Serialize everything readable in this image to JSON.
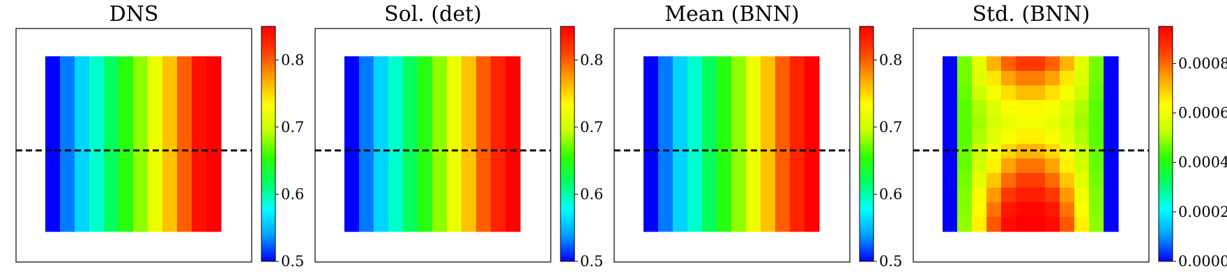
{
  "chart_data": [
    {
      "type": "heatmap",
      "title": "DNS",
      "colorbar": {
        "vmin": 0.5,
        "vmax": 0.85,
        "ticks": [
          0.5,
          0.6,
          0.7,
          0.8
        ],
        "tick_labels": [
          "0.5",
          "0.6",
          "0.7",
          "0.8"
        ]
      },
      "grid": [
        [
          0.5,
          0.53,
          0.56,
          0.59,
          0.62,
          0.65,
          0.68,
          0.72,
          0.76,
          0.8,
          0.84,
          0.85
        ],
        [
          0.5,
          0.53,
          0.56,
          0.59,
          0.62,
          0.65,
          0.68,
          0.72,
          0.76,
          0.8,
          0.84,
          0.85
        ],
        [
          0.5,
          0.53,
          0.56,
          0.59,
          0.62,
          0.65,
          0.68,
          0.72,
          0.76,
          0.8,
          0.84,
          0.85
        ],
        [
          0.5,
          0.53,
          0.56,
          0.59,
          0.62,
          0.65,
          0.68,
          0.72,
          0.76,
          0.8,
          0.84,
          0.85
        ],
        [
          0.5,
          0.53,
          0.56,
          0.59,
          0.62,
          0.65,
          0.68,
          0.72,
          0.76,
          0.8,
          0.84,
          0.85
        ],
        [
          0.5,
          0.53,
          0.56,
          0.59,
          0.62,
          0.65,
          0.68,
          0.72,
          0.76,
          0.8,
          0.84,
          0.85
        ],
        [
          0.5,
          0.53,
          0.56,
          0.59,
          0.62,
          0.65,
          0.68,
          0.72,
          0.76,
          0.8,
          0.84,
          0.85
        ],
        [
          0.5,
          0.53,
          0.56,
          0.59,
          0.62,
          0.65,
          0.68,
          0.72,
          0.76,
          0.8,
          0.84,
          0.85
        ],
        [
          0.5,
          0.53,
          0.56,
          0.59,
          0.62,
          0.65,
          0.68,
          0.72,
          0.76,
          0.8,
          0.84,
          0.85
        ],
        [
          0.5,
          0.53,
          0.56,
          0.59,
          0.62,
          0.65,
          0.68,
          0.72,
          0.76,
          0.8,
          0.84,
          0.85
        ],
        [
          0.5,
          0.53,
          0.56,
          0.59,
          0.62,
          0.65,
          0.68,
          0.72,
          0.76,
          0.8,
          0.84,
          0.85
        ],
        [
          0.5,
          0.53,
          0.56,
          0.59,
          0.62,
          0.65,
          0.68,
          0.72,
          0.76,
          0.8,
          0.84,
          0.85
        ]
      ]
    },
    {
      "type": "heatmap",
      "title": "Sol. (det)",
      "colorbar": {
        "vmin": 0.5,
        "vmax": 0.85,
        "ticks": [
          0.5,
          0.6,
          0.7,
          0.8
        ],
        "tick_labels": [
          "0.5",
          "0.6",
          "0.7",
          "0.8"
        ]
      },
      "grid": [
        [
          0.5,
          0.53,
          0.56,
          0.59,
          0.62,
          0.65,
          0.68,
          0.72,
          0.76,
          0.8,
          0.83,
          0.85
        ],
        [
          0.5,
          0.53,
          0.56,
          0.59,
          0.62,
          0.65,
          0.68,
          0.72,
          0.76,
          0.8,
          0.83,
          0.85
        ],
        [
          0.5,
          0.53,
          0.56,
          0.59,
          0.62,
          0.65,
          0.68,
          0.72,
          0.76,
          0.8,
          0.83,
          0.85
        ],
        [
          0.5,
          0.53,
          0.56,
          0.59,
          0.62,
          0.65,
          0.68,
          0.72,
          0.76,
          0.8,
          0.83,
          0.85
        ],
        [
          0.5,
          0.53,
          0.56,
          0.59,
          0.62,
          0.65,
          0.68,
          0.72,
          0.76,
          0.8,
          0.83,
          0.85
        ],
        [
          0.5,
          0.53,
          0.56,
          0.59,
          0.62,
          0.65,
          0.68,
          0.72,
          0.76,
          0.8,
          0.83,
          0.85
        ],
        [
          0.5,
          0.53,
          0.56,
          0.59,
          0.62,
          0.65,
          0.68,
          0.72,
          0.76,
          0.8,
          0.83,
          0.85
        ],
        [
          0.5,
          0.53,
          0.56,
          0.59,
          0.62,
          0.65,
          0.68,
          0.72,
          0.76,
          0.8,
          0.83,
          0.85
        ],
        [
          0.5,
          0.53,
          0.56,
          0.59,
          0.62,
          0.65,
          0.68,
          0.72,
          0.76,
          0.8,
          0.83,
          0.85
        ],
        [
          0.5,
          0.53,
          0.56,
          0.59,
          0.62,
          0.65,
          0.68,
          0.72,
          0.76,
          0.8,
          0.83,
          0.85
        ],
        [
          0.5,
          0.53,
          0.56,
          0.59,
          0.62,
          0.65,
          0.68,
          0.72,
          0.76,
          0.8,
          0.83,
          0.85
        ],
        [
          0.5,
          0.53,
          0.56,
          0.59,
          0.62,
          0.65,
          0.68,
          0.72,
          0.76,
          0.8,
          0.83,
          0.85
        ]
      ]
    },
    {
      "type": "heatmap",
      "title": "Mean (BNN)",
      "colorbar": {
        "vmin": 0.5,
        "vmax": 0.85,
        "ticks": [
          0.5,
          0.6,
          0.7,
          0.8
        ],
        "tick_labels": [
          "0.5",
          "0.6",
          "0.7",
          "0.8"
        ]
      },
      "grid": [
        [
          0.5,
          0.53,
          0.56,
          0.59,
          0.62,
          0.65,
          0.68,
          0.72,
          0.76,
          0.8,
          0.83,
          0.85
        ],
        [
          0.5,
          0.53,
          0.56,
          0.59,
          0.62,
          0.65,
          0.68,
          0.72,
          0.76,
          0.8,
          0.83,
          0.85
        ],
        [
          0.5,
          0.53,
          0.56,
          0.59,
          0.62,
          0.65,
          0.68,
          0.72,
          0.76,
          0.8,
          0.83,
          0.85
        ],
        [
          0.5,
          0.53,
          0.56,
          0.59,
          0.62,
          0.65,
          0.68,
          0.72,
          0.76,
          0.8,
          0.83,
          0.85
        ],
        [
          0.5,
          0.53,
          0.56,
          0.59,
          0.62,
          0.65,
          0.68,
          0.72,
          0.76,
          0.8,
          0.83,
          0.85
        ],
        [
          0.5,
          0.53,
          0.56,
          0.59,
          0.62,
          0.65,
          0.68,
          0.72,
          0.76,
          0.8,
          0.83,
          0.85
        ],
        [
          0.5,
          0.53,
          0.56,
          0.59,
          0.62,
          0.65,
          0.68,
          0.72,
          0.76,
          0.8,
          0.83,
          0.85
        ],
        [
          0.5,
          0.53,
          0.56,
          0.59,
          0.62,
          0.65,
          0.68,
          0.72,
          0.76,
          0.8,
          0.83,
          0.85
        ],
        [
          0.5,
          0.53,
          0.56,
          0.59,
          0.62,
          0.65,
          0.68,
          0.72,
          0.76,
          0.8,
          0.83,
          0.85
        ],
        [
          0.5,
          0.53,
          0.56,
          0.59,
          0.62,
          0.65,
          0.68,
          0.72,
          0.76,
          0.8,
          0.83,
          0.85
        ],
        [
          0.5,
          0.53,
          0.56,
          0.59,
          0.62,
          0.65,
          0.68,
          0.72,
          0.76,
          0.8,
          0.83,
          0.85
        ],
        [
          0.5,
          0.53,
          0.56,
          0.59,
          0.62,
          0.65,
          0.68,
          0.72,
          0.76,
          0.8,
          0.83,
          0.85
        ]
      ]
    },
    {
      "type": "heatmap",
      "title": "Std. (BNN)",
      "colorbar": {
        "vmin": 0.0,
        "vmax": 0.00095,
        "ticks": [
          0.0,
          0.0002,
          0.0004,
          0.0006,
          0.0008
        ],
        "tick_labels": [
          "0.0000",
          "0.0002",
          "0.0004",
          "0.0006",
          "0.0008"
        ]
      },
      "grid": [
        [
          0.0,
          0.00047,
          0.00058,
          0.00072,
          0.00081,
          0.00086,
          0.00086,
          0.00081,
          0.00072,
          0.00058,
          0.00047,
          0.0
        ],
        [
          0.0,
          0.00047,
          0.00057,
          0.00066,
          0.00074,
          0.00078,
          0.00078,
          0.00074,
          0.00066,
          0.00057,
          0.00047,
          0.0
        ],
        [
          0.0,
          0.00046,
          0.00054,
          0.00061,
          0.00067,
          0.00071,
          0.00071,
          0.00067,
          0.00061,
          0.00054,
          0.00046,
          0.0
        ],
        [
          0.0,
          0.00045,
          0.00051,
          0.00057,
          0.00062,
          0.00064,
          0.00064,
          0.00062,
          0.00057,
          0.00051,
          0.00045,
          0.0
        ],
        [
          0.0,
          0.00045,
          0.0005,
          0.00055,
          0.00059,
          0.00061,
          0.00061,
          0.00059,
          0.00055,
          0.0005,
          0.00045,
          0.0
        ],
        [
          0.0,
          0.00045,
          0.00051,
          0.00057,
          0.00062,
          0.00065,
          0.00065,
          0.00062,
          0.00057,
          0.00051,
          0.00045,
          0.0
        ],
        [
          0.0,
          0.00046,
          0.00053,
          0.00061,
          0.00068,
          0.00072,
          0.00072,
          0.00068,
          0.00061,
          0.00053,
          0.00046,
          0.0
        ],
        [
          0.0,
          0.00046,
          0.00055,
          0.00065,
          0.00074,
          0.00079,
          0.00079,
          0.00074,
          0.00065,
          0.00055,
          0.00046,
          0.0
        ],
        [
          0.0,
          0.00047,
          0.00058,
          0.0007,
          0.0008,
          0.00085,
          0.00085,
          0.0008,
          0.0007,
          0.00058,
          0.00047,
          0.0
        ],
        [
          0.0,
          0.00048,
          0.00061,
          0.00075,
          0.00086,
          0.0009,
          0.0009,
          0.00086,
          0.00075,
          0.00061,
          0.00048,
          0.0
        ],
        [
          0.0,
          0.00048,
          0.00063,
          0.00079,
          0.00091,
          0.00094,
          0.00094,
          0.00091,
          0.00079,
          0.00063,
          0.00048,
          0.0
        ],
        [
          0.0,
          0.00049,
          0.00065,
          0.00082,
          0.00093,
          0.00095,
          0.00095,
          0.00093,
          0.00082,
          0.00065,
          0.00049,
          0.0
        ]
      ]
    }
  ],
  "colormap": {
    "name": "jet",
    "stops": [
      "#0000ff",
      "#00a0ff",
      "#00ffff",
      "#00ff66",
      "#2eff00",
      "#c8ff00",
      "#ffff00",
      "#ffa500",
      "#ff4000",
      "#ff0000"
    ]
  },
  "reference_line": {
    "style": "dashed",
    "color": "#000000"
  }
}
